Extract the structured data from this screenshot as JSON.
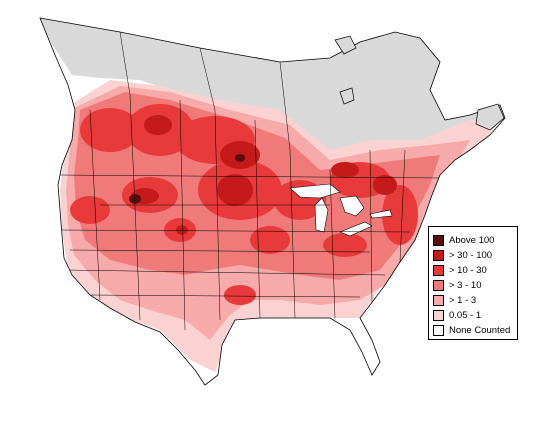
{
  "legend": {
    "items": [
      {
        "label": "Above 100",
        "color": "#5a0d0d"
      },
      {
        "label": "> 30 - 100",
        "color": "#c41a1a"
      },
      {
        "label": "> 10 - 30",
        "color": "#e83a3a"
      },
      {
        "label": "> 3 - 10",
        "color": "#f07a7a"
      },
      {
        "label": "> 1 - 3",
        "color": "#f6aaaa"
      },
      {
        "label": "0.05 - 1",
        "color": "#fbd2d2"
      },
      {
        "label": "None Counted",
        "color": "#ffffff"
      }
    ]
  },
  "colors": {
    "unsurveyed": "#d9d9d9",
    "border": "#000000",
    "background": "#ffffff"
  }
}
